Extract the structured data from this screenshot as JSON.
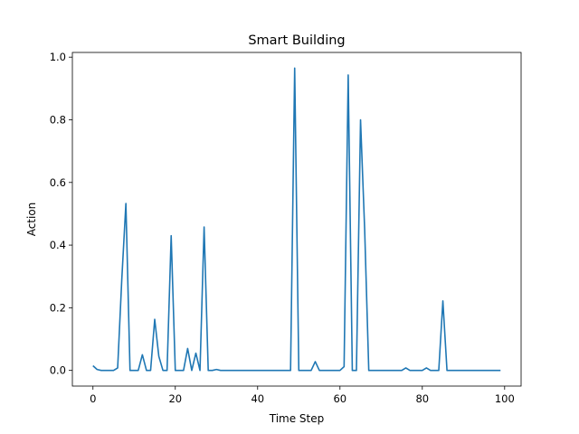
{
  "chart_data": {
    "type": "line",
    "title": "Smart Building",
    "xlabel": "Time Step",
    "ylabel": "Action",
    "xlim": [
      -5,
      104
    ],
    "ylim": [
      -0.05,
      1.015
    ],
    "xticks": [
      0,
      20,
      40,
      60,
      80,
      100
    ],
    "yticks": [
      0.0,
      0.2,
      0.4,
      0.6,
      0.8,
      1.0
    ],
    "grid": false,
    "line_color": "#1f77b4",
    "series": [
      {
        "x": [
          0,
          1,
          2,
          3,
          4,
          5,
          6,
          7,
          8,
          9,
          10,
          11,
          12,
          13,
          14,
          15,
          16,
          17,
          18,
          19,
          20,
          21,
          22,
          23,
          24,
          25,
          26,
          27,
          28,
          29,
          30,
          31,
          32,
          33,
          34,
          35,
          36,
          37,
          38,
          39,
          40,
          41,
          42,
          43,
          44,
          45,
          46,
          47,
          48,
          49,
          50,
          51,
          52,
          53,
          54,
          55,
          56,
          57,
          58,
          59,
          60,
          61,
          62,
          63,
          64,
          65,
          66,
          67,
          68,
          69,
          70,
          71,
          72,
          73,
          74,
          75,
          76,
          77,
          78,
          79,
          80,
          81,
          82,
          83,
          84,
          85,
          86,
          87,
          88,
          89,
          90,
          91,
          92,
          93,
          94,
          95,
          96,
          97,
          98,
          99
        ],
        "y": [
          0.015,
          0.003,
          0,
          0,
          0,
          0,
          0.008,
          0.29,
          0.533,
          0,
          0,
          0,
          0.05,
          0,
          0,
          0.163,
          0.045,
          0,
          0,
          0.43,
          0,
          0,
          0,
          0.07,
          0,
          0.055,
          0,
          0.458,
          0,
          0,
          0.003,
          0,
          0,
          0,
          0,
          0,
          0,
          0,
          0,
          0,
          0,
          0,
          0,
          0,
          0,
          0,
          0,
          0,
          0,
          0.965,
          0,
          0,
          0,
          0,
          0.028,
          0,
          0,
          0,
          0,
          0,
          0,
          0.012,
          0.943,
          0,
          0,
          0.8,
          0.45,
          0,
          0,
          0,
          0,
          0,
          0,
          0,
          0,
          0,
          0.008,
          0,
          0,
          0,
          0,
          0.008,
          0,
          0,
          0,
          0.222,
          0,
          0,
          0,
          0,
          0,
          0,
          0,
          0,
          0,
          0,
          0,
          0,
          0,
          0
        ]
      }
    ]
  }
}
